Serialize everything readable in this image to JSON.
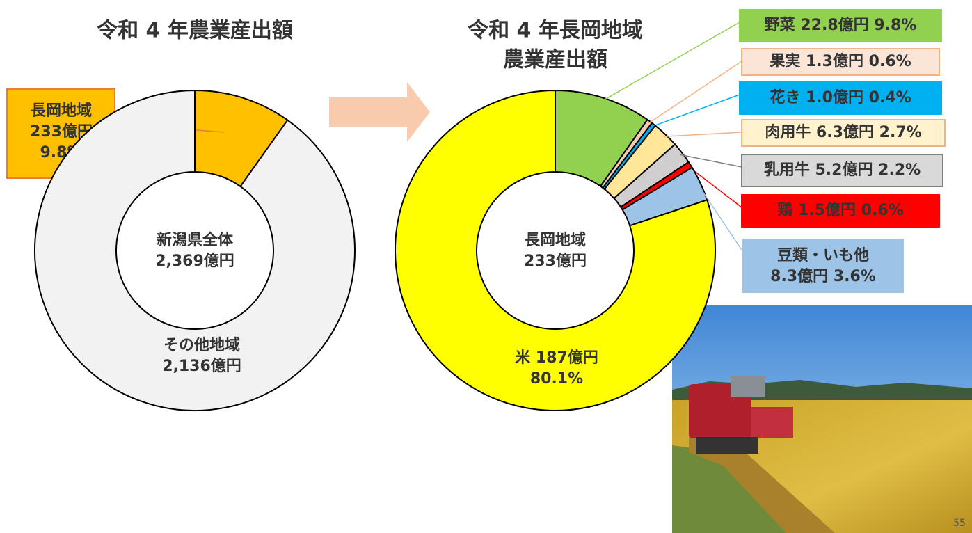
{
  "chart_data": [
    {
      "type": "donut",
      "title": [
        "令和 4 年農業産出額"
      ],
      "categories": [
        "長岡地域",
        "その他地域"
      ],
      "values": [
        233,
        2136
      ],
      "value_labels": [
        "233億円",
        "2,136億円"
      ],
      "percent_labels": [
        "9.8%",
        null
      ],
      "colors": [
        "#ffc000",
        "#f2f2f2"
      ],
      "center_labels": [
        "新潟県全体",
        "2,369億円"
      ]
    },
    {
      "type": "donut",
      "title": [
        "令和 4 年長岡地域",
        "農業産出額"
      ],
      "categories": [
        "野菜",
        "果実",
        "花き",
        "肉用牛",
        "乳用牛",
        "鶏",
        "豆類・いも他",
        "米"
      ],
      "values": [
        22.8,
        1.3,
        1.0,
        6.3,
        5.2,
        1.5,
        8.3,
        187
      ],
      "value_labels": [
        "22.8億円",
        "1.3億円",
        "1.0億円",
        "6.3億円",
        "5.2億円",
        "1.5億円",
        "8.3億円",
        "187億円"
      ],
      "percent_labels": [
        "9.8%",
        "0.6%",
        "0.4%",
        "2.7%",
        "2.2%",
        "0.6%",
        "3.6%",
        "80.1%"
      ],
      "colors": [
        "#92d050",
        "#f8cbad",
        "#00b0f0",
        "#ffe699",
        "#d0cece",
        "#ff0000",
        "#9dc3e6",
        "#ffff00"
      ],
      "center_labels": [
        "長岡地域",
        "233億円"
      ]
    }
  ],
  "page_number": "55"
}
